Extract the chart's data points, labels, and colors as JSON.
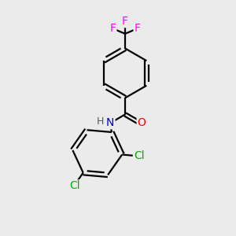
{
  "bg_color": "#ebebeb",
  "bond_color": "#000000",
  "F_color": "#ff00ff",
  "O_color": "#ff0000",
  "N_color": "#0000cd",
  "Cl_color": "#00aa00",
  "H_color": "#555555",
  "line_width": 1.6,
  "font_size_atoms": 10,
  "figsize": [
    3.0,
    3.0
  ],
  "dpi": 100,
  "xlim": [
    0,
    10
  ],
  "ylim": [
    0,
    10
  ]
}
